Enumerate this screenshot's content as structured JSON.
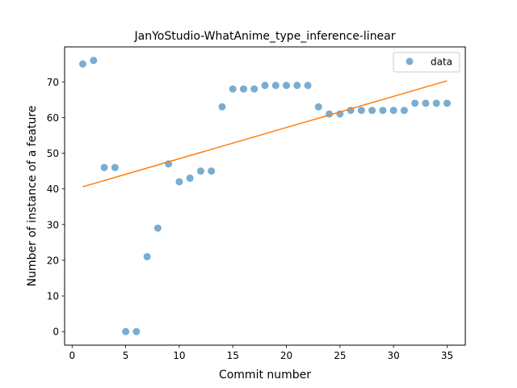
{
  "chart_data": {
    "type": "scatter",
    "title": "JanYoStudio-WhatAnime_type_inference-linear",
    "xlabel": "Commit number",
    "ylabel": "Number of instance of a feature",
    "xlim": [
      -0.7,
      36.7
    ],
    "ylim": [
      -3.8,
      79.8
    ],
    "xticks": [
      0,
      5,
      10,
      15,
      20,
      25,
      30,
      35
    ],
    "yticks": [
      0,
      10,
      20,
      30,
      40,
      50,
      60,
      70
    ],
    "grid": false,
    "legend_position": "top-right",
    "series": [
      {
        "name": "data",
        "kind": "scatter",
        "color": "#1f77b4",
        "x": [
          1,
          2,
          3,
          4,
          5,
          6,
          7,
          8,
          9,
          10,
          11,
          12,
          13,
          14,
          15,
          16,
          17,
          18,
          19,
          20,
          21,
          22,
          23,
          24,
          25,
          26,
          27,
          28,
          29,
          30,
          31,
          32,
          33,
          34,
          35
        ],
        "y": [
          75,
          76,
          46,
          46,
          0,
          0,
          21,
          29,
          47,
          42,
          43,
          45,
          45,
          63,
          68,
          68,
          68,
          69,
          69,
          69,
          69,
          69,
          63,
          61,
          61,
          62,
          62,
          62,
          62,
          62,
          62,
          64,
          64,
          64,
          64
        ]
      },
      {
        "kind": "line",
        "color": "#ff7f0e",
        "x": [
          1,
          35
        ],
        "y": [
          40.6,
          70.3
        ]
      }
    ]
  }
}
